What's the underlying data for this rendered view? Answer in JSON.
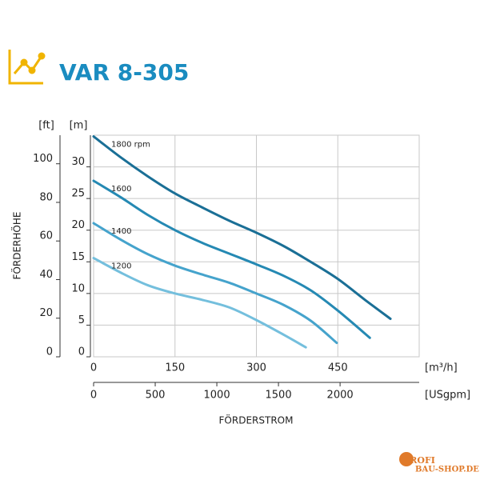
{
  "chart_data": {
    "type": "line",
    "title": "VAR 8-305",
    "y_unit": "[m]",
    "y2_unit": "[ft]",
    "y_label": "FÖRDERHÖHE",
    "x_unit": "[m³/h]",
    "x2_unit": "[USgpm]",
    "x_label": "FÖRDERSTROM",
    "xlim": [
      0,
      600
    ],
    "xticks": [
      0,
      150,
      300,
      450
    ],
    "x2lim": [
      0,
      2642
    ],
    "x2ticks": [
      0,
      500,
      1000,
      1500,
      2000
    ],
    "ylim": [
      0,
      35
    ],
    "yticks": [
      0,
      5,
      10,
      15,
      20,
      25,
      30
    ],
    "y2lim": [
      0,
      114.8
    ],
    "y2ticks": [
      0,
      20,
      40,
      60,
      80,
      100
    ],
    "grid": true,
    "series": [
      {
        "name": "1800 rpm",
        "color": "#1a6f96",
        "x": [
          0,
          50,
          100,
          150,
          200,
          250,
          300,
          350,
          400,
          450,
          500,
          547
        ],
        "values": [
          34.8,
          31.5,
          28.5,
          25.8,
          23.6,
          21.5,
          19.6,
          17.5,
          15.0,
          12.3,
          9.0,
          6.0
        ]
      },
      {
        "name": "1600",
        "color": "#2589b3",
        "x": [
          0,
          50,
          100,
          150,
          200,
          250,
          300,
          350,
          400,
          450,
          509
        ],
        "values": [
          27.8,
          25.2,
          22.4,
          20.0,
          18.0,
          16.3,
          14.6,
          12.8,
          10.5,
          7.3,
          3.0
        ]
      },
      {
        "name": "1400",
        "color": "#45a3cc",
        "x": [
          0,
          50,
          100,
          150,
          200,
          250,
          300,
          350,
          400,
          448
        ],
        "values": [
          21.1,
          18.5,
          16.2,
          14.4,
          13.0,
          11.7,
          10.0,
          8.2,
          5.7,
          2.2
        ]
      },
      {
        "name": "1200",
        "color": "#74bfdd",
        "x": [
          0,
          50,
          100,
          150,
          200,
          250,
          300,
          350,
          391
        ],
        "values": [
          15.6,
          13.3,
          11.3,
          10.0,
          9.0,
          7.8,
          5.8,
          3.5,
          1.5
        ]
      }
    ]
  },
  "watermark": {
    "brand": "PROFI",
    "site": "BAU-SHOP.DE"
  }
}
